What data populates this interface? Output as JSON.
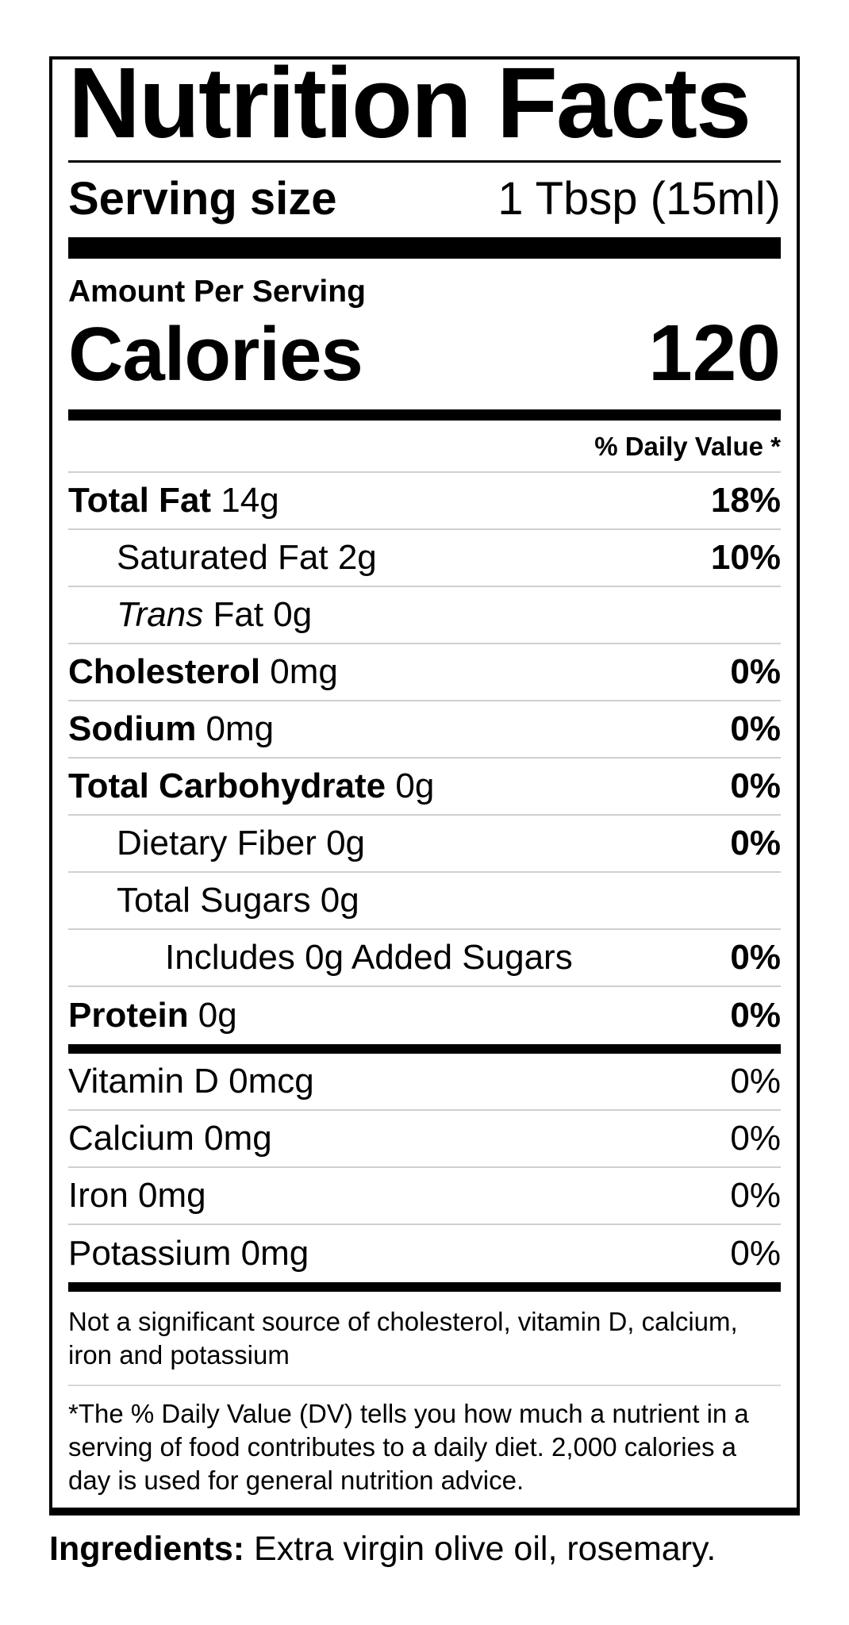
{
  "label": {
    "title": "Nutrition Facts",
    "serving": {
      "label": "Serving size",
      "value": "1 Tbsp (15ml)"
    },
    "amount_per_serving": "Amount Per Serving",
    "calories": {
      "label": "Calories",
      "value": "120"
    },
    "daily_value_header": "% Daily Value *",
    "nutrients": [
      {
        "bold": "Total Fat",
        "rest": " 14g",
        "dv": "18%"
      },
      {
        "rest": "Saturated Fat 2g",
        "dv": "10%"
      },
      {
        "italic": "Trans",
        "rest": " Fat 0g",
        "dv": ""
      },
      {
        "bold": "Cholesterol",
        "rest": " 0mg",
        "dv": "0%"
      },
      {
        "bold": "Sodium",
        "rest": " 0mg",
        "dv": "0%"
      },
      {
        "bold": "Total Carbohydrate",
        "rest": " 0g",
        "dv": "0%"
      },
      {
        "rest": "Dietary Fiber 0g",
        "dv": "0%"
      },
      {
        "rest": "Total Sugars 0g",
        "dv": ""
      },
      {
        "rest": "Includes 0g Added Sugars",
        "dv": "0%"
      },
      {
        "bold": "Protein",
        "rest": " 0g",
        "dv": "0%"
      }
    ],
    "vitamins": [
      {
        "name": "Vitamin D 0mcg",
        "dv": "0%"
      },
      {
        "name": "Calcium 0mg",
        "dv": "0%"
      },
      {
        "name": "Iron 0mg",
        "dv": "0%"
      },
      {
        "name": "Potassium 0mg",
        "dv": "0%"
      }
    ],
    "footnotes": {
      "not_significant": "Not a significant source of cholesterol, vitamin D, calcium, iron and potassium",
      "dv_explanation": "*The % Daily Value (DV) tells you how much a nutrient in a serving of food contributes to a daily diet. 2,000 calories a day is used for general nutrition advice."
    }
  },
  "ingredients": {
    "label": "Ingredients:",
    "value": " Extra virgin olive oil, rosemary."
  },
  "colors": {
    "text": "#000000",
    "hairline": "#d0d0d0",
    "background": "#ffffff"
  }
}
